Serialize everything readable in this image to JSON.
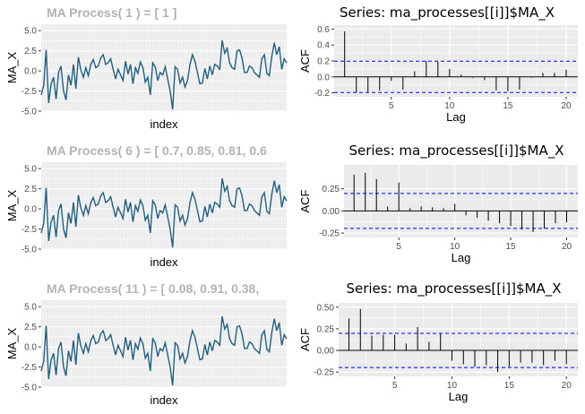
{
  "colors": {
    "series": "#1f5f7f",
    "panel": "#ebebeb",
    "grid": "#ffffff",
    "ci": "#0000ff",
    "acf_bar": "#000000",
    "title_grey": "#b3b3b3"
  },
  "chart_data": [
    {
      "type": "line",
      "title": "MA Process( 1 ) = [ 1 ]",
      "xlabel": "index",
      "ylabel": "MA_X",
      "yticks": [
        "-5.0",
        "-2.5",
        "0.0",
        "2.5",
        "5.0"
      ],
      "ylim": [
        -5.0,
        5.8
      ],
      "xlim": [
        1,
        100
      ],
      "values": [
        -3.0,
        -1.8,
        2.6,
        -4.0,
        -1.6,
        -0.8,
        -3.5,
        -0.2,
        0.6,
        -2.5,
        -3.6,
        -0.5,
        -1.8,
        0.8,
        -2.2,
        1.7,
        0.1,
        -0.8,
        0.4,
        -0.6,
        0.8,
        1.4,
        0.4,
        0.6,
        1.6,
        2.0,
        0.8,
        1.0,
        1.5,
        0.2,
        -1.0,
        0.2,
        -0.5,
        -1.2,
        1.2,
        -0.4,
        0.8,
        -1.6,
        0.4,
        -0.3,
        1.1,
        0.4,
        -1.4,
        -0.8,
        -3.0,
        1.0,
        0.5,
        -1.2,
        -0.2,
        -0.5,
        0.5,
        -1.0,
        -2.5,
        -4.8,
        0.5,
        0.2,
        -1.5,
        -0.8,
        -2.0,
        -1.2,
        0.8,
        2.0,
        1.2,
        -0.2,
        -1.6,
        -1.5,
        0.3,
        -1.0,
        0.6,
        -0.5,
        0.8,
        0.6,
        0.2,
        3.8,
        2.2,
        2.8,
        1.0,
        0.4,
        0.2,
        2.5,
        2.6,
        1.6,
        -0.2,
        -0.2,
        0.6,
        0.4,
        -0.2,
        -0.5,
        -0.8,
        1.5,
        2.0,
        -0.3,
        -0.6,
        1.8,
        3.5,
        2.0,
        3.0,
        0.2,
        1.5,
        1.0
      ]
    },
    {
      "type": "bar",
      "title": "Series: ma_processes[[i]]$MA_X",
      "xlabel": "Lag",
      "ylabel": "ACF",
      "xticks": [
        5,
        10,
        15,
        20
      ],
      "yticks": [
        "0.6",
        "0.4",
        "0.2",
        "0.0",
        "-0.2"
      ],
      "ylim": [
        -0.25,
        0.65
      ],
      "xlim": [
        0.1,
        21
      ],
      "ci": 0.197,
      "lags": [
        1,
        2,
        3,
        4,
        5,
        6,
        7,
        8,
        9,
        10,
        11,
        12,
        13,
        14,
        15,
        16,
        17,
        18,
        19,
        20
      ],
      "values": [
        0.57,
        -0.2,
        -0.19,
        -0.17,
        -0.05,
        -0.16,
        0.07,
        0.2,
        0.19,
        0.1,
        0.03,
        -0.01,
        -0.04,
        -0.17,
        -0.18,
        -0.16,
        -0.01,
        0.05,
        0.05,
        0.09
      ]
    },
    {
      "type": "line",
      "title": "MA Process( 6 ) = [ 0.7, 0.85, 0.81, 0.6",
      "xlabel": "index",
      "ylabel": "MA_X",
      "yticks": [
        "-5.0",
        "-2.5",
        "0.0",
        "2.5",
        "5.0"
      ],
      "ylim": [
        -5.0,
        5.8
      ],
      "xlim": [
        1,
        100
      ],
      "values": [
        -3.0,
        -1.8,
        2.6,
        -4.0,
        -1.6,
        -0.8,
        -3.5,
        -0.2,
        0.6,
        -2.5,
        -3.6,
        -0.5,
        -1.8,
        0.8,
        -2.2,
        1.7,
        0.1,
        -0.8,
        0.4,
        -0.6,
        0.8,
        1.4,
        0.4,
        0.6,
        1.6,
        2.0,
        0.8,
        1.0,
        1.5,
        0.2,
        -1.0,
        0.2,
        -0.5,
        -1.2,
        1.2,
        -0.4,
        0.8,
        -1.6,
        0.4,
        -0.3,
        1.1,
        0.4,
        -1.4,
        -0.8,
        -3.0,
        1.0,
        0.5,
        -1.2,
        -0.2,
        -0.5,
        0.5,
        -1.0,
        -2.5,
        -4.8,
        0.5,
        0.2,
        -1.5,
        -0.8,
        -2.0,
        -1.2,
        0.8,
        2.0,
        1.2,
        -0.2,
        -1.6,
        -1.5,
        0.3,
        -1.0,
        0.6,
        -0.5,
        0.8,
        0.6,
        0.2,
        3.8,
        2.2,
        2.8,
        1.0,
        0.4,
        0.2,
        2.5,
        2.6,
        1.6,
        -0.2,
        -0.2,
        0.6,
        0.4,
        -0.2,
        -0.5,
        -0.8,
        1.5,
        2.0,
        -0.3,
        -0.6,
        1.8,
        3.5,
        2.0,
        3.0,
        0.2,
        1.5,
        1.0
      ]
    },
    {
      "type": "bar",
      "title": "Series: ma_processes[[i]]$MA_X",
      "xlabel": "Lag",
      "ylabel": "ACF",
      "xticks": [
        5,
        10,
        15,
        20
      ],
      "yticks": [
        "0.25",
        "0.00",
        "-0.25"
      ],
      "ylim": [
        -0.3,
        0.52
      ],
      "xlim": [
        0.1,
        21
      ],
      "ci": 0.197,
      "lags": [
        1,
        2,
        3,
        4,
        5,
        6,
        7,
        8,
        9,
        10,
        11,
        12,
        13,
        14,
        15,
        16,
        17,
        18,
        19,
        20
      ],
      "values": [
        0.41,
        0.43,
        0.36,
        0.05,
        0.32,
        0.03,
        0.05,
        0.04,
        0.03,
        0.08,
        -0.05,
        -0.08,
        -0.11,
        -0.14,
        -0.17,
        -0.21,
        -0.24,
        -0.2,
        -0.14,
        -0.13
      ]
    },
    {
      "type": "line",
      "title": "MA Process( 11 ) = [ 0.08, 0.91, 0.38,",
      "xlabel": "index",
      "ylabel": "MA_X",
      "yticks": [
        "-5.0",
        "-2.5",
        "0.0",
        "2.5",
        "5.0"
      ],
      "ylim": [
        -5.0,
        5.8
      ],
      "xlim": [
        1,
        100
      ],
      "values": [
        -3.0,
        -1.8,
        2.6,
        -4.0,
        -1.6,
        -0.8,
        -3.5,
        -0.2,
        0.6,
        -2.5,
        -3.6,
        -0.5,
        -1.8,
        0.8,
        -2.2,
        1.7,
        0.1,
        -0.8,
        0.4,
        -0.6,
        0.8,
        1.4,
        0.4,
        0.6,
        1.6,
        2.0,
        0.8,
        1.0,
        1.5,
        0.2,
        -1.0,
        0.2,
        -0.5,
        -1.2,
        1.2,
        -0.4,
        0.8,
        -1.6,
        0.4,
        -0.3,
        1.1,
        0.4,
        -1.4,
        -0.8,
        -3.0,
        1.0,
        0.5,
        -1.2,
        -0.2,
        -0.5,
        0.5,
        -1.0,
        -2.5,
        -4.8,
        0.5,
        0.2,
        -1.5,
        -0.8,
        -2.0,
        -1.2,
        0.8,
        2.0,
        1.2,
        -0.2,
        -1.6,
        -1.5,
        0.3,
        -1.0,
        0.6,
        -0.5,
        0.8,
        0.6,
        0.2,
        3.8,
        2.2,
        2.8,
        1.0,
        0.4,
        0.2,
        2.5,
        2.6,
        1.6,
        -0.2,
        -0.2,
        0.6,
        0.4,
        -0.2,
        -0.5,
        -0.8,
        1.5,
        2.0,
        -0.3,
        -0.6,
        1.8,
        3.5,
        2.0,
        3.0,
        0.2,
        1.5,
        1.0
      ]
    },
    {
      "type": "bar",
      "title": "Series: ma_processes[[i]]$MA_X",
      "xlabel": "Lag",
      "ylabel": "ACF",
      "xticks": [
        5,
        10,
        15,
        20
      ],
      "yticks": [
        "0.50",
        "0.25",
        "0.00",
        "-0.25"
      ],
      "ylim": [
        -0.3,
        0.55
      ],
      "xlim": [
        0.1,
        21
      ],
      "ci": 0.197,
      "lags": [
        1,
        2,
        3,
        4,
        5,
        6,
        7,
        8,
        9,
        10,
        11,
        12,
        13,
        14,
        15,
        16,
        17,
        18,
        19,
        20
      ],
      "values": [
        0.37,
        0.48,
        0.17,
        0.18,
        0.18,
        0.08,
        0.27,
        0.1,
        0.19,
        -0.12,
        -0.16,
        -0.19,
        -0.17,
        -0.25,
        -0.19,
        -0.14,
        -0.14,
        -0.17,
        -0.12,
        -0.16
      ]
    }
  ]
}
